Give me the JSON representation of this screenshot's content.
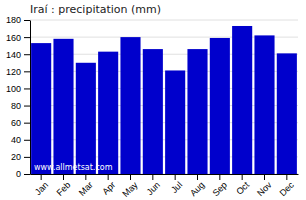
{
  "chart_data": {
    "type": "bar",
    "title": "Iraí : precipitation (mm)",
    "categories": [
      "Jan",
      "Feb",
      "Mar",
      "Apr",
      "May",
      "Jun",
      "Jul",
      "Aug",
      "Sep",
      "Oct",
      "Nov",
      "Dec"
    ],
    "values": [
      153,
      158,
      130,
      143,
      160,
      146,
      121,
      146,
      159,
      173,
      162,
      141
    ],
    "color": "#0000CC",
    "ylim": [
      0,
      180
    ],
    "yticks": [
      0,
      20,
      40,
      60,
      80,
      100,
      120,
      140,
      160,
      180
    ],
    "grid": true,
    "annotations": [
      "www.allmetsat.com"
    ]
  }
}
